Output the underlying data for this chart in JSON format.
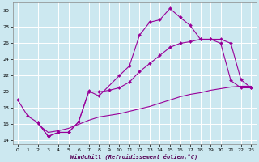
{
  "xlabel": "Windchill (Refroidissement éolien,°C)",
  "background_color": "#cce8f0",
  "grid_color": "#ffffff",
  "line_color": "#990099",
  "xlim": [
    -0.5,
    23.5
  ],
  "ylim": [
    13.5,
    31.0
  ],
  "xticks": [
    0,
    1,
    2,
    3,
    4,
    5,
    6,
    7,
    8,
    9,
    10,
    11,
    12,
    13,
    14,
    15,
    16,
    17,
    18,
    19,
    20,
    21,
    22,
    23
  ],
  "yticks": [
    14,
    16,
    18,
    20,
    22,
    24,
    26,
    28,
    30
  ],
  "series": [
    {
      "x": [
        0,
        1,
        2,
        3,
        4,
        5,
        6,
        7,
        8,
        10,
        11,
        12,
        13,
        14,
        15,
        16,
        17,
        18,
        19,
        20,
        21,
        22,
        23
      ],
      "y": [
        19.0,
        17.0,
        16.2,
        14.5,
        15.0,
        15.0,
        16.3,
        20.1,
        19.5,
        22.0,
        23.2,
        27.0,
        28.6,
        28.9,
        30.3,
        29.2,
        28.2,
        26.5,
        26.5,
        26.0,
        21.4,
        20.5,
        20.5
      ],
      "markers": true
    },
    {
      "x": [
        2,
        3,
        4,
        5,
        6,
        7,
        8,
        9,
        10,
        11,
        12,
        13,
        14,
        15,
        16,
        17,
        18,
        19,
        20,
        21,
        22,
        23
      ],
      "y": [
        16.2,
        14.5,
        15.0,
        15.0,
        16.3,
        20.0,
        20.0,
        20.2,
        20.5,
        21.2,
        22.5,
        23.5,
        24.5,
        25.5,
        26.0,
        26.2,
        26.5,
        26.5,
        26.5,
        26.0,
        21.5,
        20.5
      ],
      "markers": true
    },
    {
      "x": [
        2,
        3,
        4,
        5,
        6,
        7,
        8,
        9,
        10,
        11,
        12,
        13,
        14,
        15,
        16,
        17,
        18,
        19,
        20,
        21,
        22,
        23
      ],
      "y": [
        16.0,
        15.0,
        15.2,
        15.5,
        16.0,
        16.5,
        16.9,
        17.1,
        17.3,
        17.6,
        17.9,
        18.2,
        18.6,
        19.0,
        19.4,
        19.7,
        19.9,
        20.2,
        20.4,
        20.6,
        20.7,
        20.7
      ],
      "markers": false
    }
  ]
}
